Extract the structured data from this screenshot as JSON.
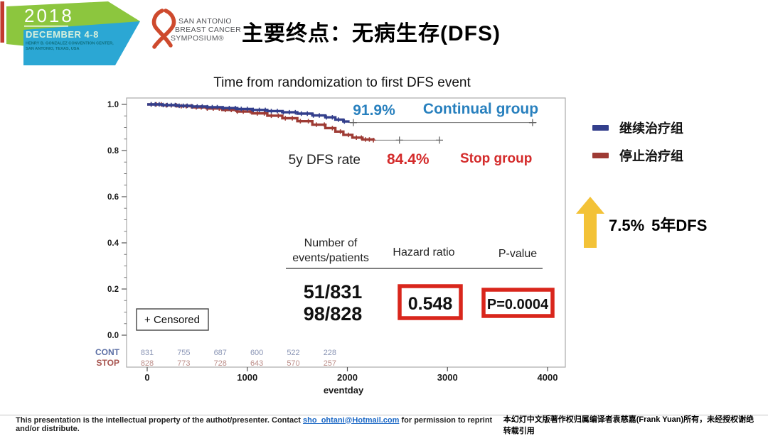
{
  "header": {
    "logo2018": {
      "year": "2018",
      "dates": "DECEMBER 4-8",
      "venue_line1": "HENRY B. GONZALEZ CONVENTION CENTER,",
      "venue_line2": "SAN ANTONIO, TEXAS, USA"
    },
    "sabcs": {
      "line1": "SAN ANTONIO",
      "line2": "BREAST CANCER",
      "line3": "SYMPOSIUM®"
    },
    "title": "主要终点：无病生存(DFS)"
  },
  "chart_data": {
    "type": "line",
    "title": "Time from randomization to first DFS event",
    "xlabel": "eventday",
    "xlim": [
      0,
      4000
    ],
    "ylim": [
      0.0,
      1.0
    ],
    "xticks": [
      "0",
      "1000",
      "2000",
      "3000",
      "4000"
    ],
    "yticks": [
      "1.0",
      "0.8",
      "0.6",
      "0.4",
      "0.2",
      "0.0"
    ],
    "rate_prefix": "5y DFS rate",
    "censored_legend": "+ Censored",
    "series": [
      {
        "name": "Continual group",
        "rate": "91.9%",
        "color": "#333F8C",
        "text_color": "#2880BE",
        "steps": [
          [
            0,
            1.0
          ],
          [
            150,
            0.997
          ],
          [
            300,
            0.994
          ],
          [
            450,
            0.991
          ],
          [
            600,
            0.988
          ],
          [
            750,
            0.984
          ],
          [
            900,
            0.98
          ],
          [
            1050,
            0.976
          ],
          [
            1200,
            0.971
          ],
          [
            1350,
            0.966
          ],
          [
            1500,
            0.96
          ],
          [
            1650,
            0.952
          ],
          [
            1780,
            0.944
          ],
          [
            1880,
            0.934
          ],
          [
            1960,
            0.926
          ],
          [
            2010,
            0.921
          ]
        ],
        "censor_days": [
          40,
          80,
          120,
          160,
          200,
          240,
          280,
          320,
          360,
          400,
          450,
          500,
          550,
          600,
          650,
          700,
          760,
          820,
          880,
          940,
          1000,
          1060,
          1120,
          1180,
          1240,
          1300,
          1360,
          1420,
          1480,
          1540,
          1600,
          1660,
          1720,
          1790,
          1850,
          1910,
          1970
        ],
        "tail_end": 3890,
        "tail_censors": [
          2060,
          3850
        ]
      },
      {
        "name": "Stop group",
        "rate": "84.4%",
        "color": "#9E3B34",
        "text_color": "#D42B2B",
        "steps": [
          [
            0,
            1.0
          ],
          [
            150,
            0.996
          ],
          [
            300,
            0.992
          ],
          [
            450,
            0.987
          ],
          [
            600,
            0.982
          ],
          [
            750,
            0.976
          ],
          [
            900,
            0.969
          ],
          [
            1050,
            0.961
          ],
          [
            1200,
            0.951
          ],
          [
            1350,
            0.94
          ],
          [
            1500,
            0.927
          ],
          [
            1650,
            0.912
          ],
          [
            1780,
            0.897
          ],
          [
            1880,
            0.882
          ],
          [
            1960,
            0.868
          ],
          [
            2050,
            0.856
          ],
          [
            2150,
            0.848
          ],
          [
            2260,
            0.845
          ]
        ],
        "censor_days": [
          40,
          90,
          140,
          190,
          240,
          290,
          340,
          390,
          440,
          490,
          540,
          600,
          660,
          720,
          780,
          840,
          900,
          960,
          1030,
          1100,
          1170,
          1240,
          1310,
          1380,
          1450,
          1530,
          1610,
          1690,
          1770,
          1850,
          1930,
          2010,
          2090,
          2140,
          2180,
          2220,
          2260
        ],
        "tail_end": 2920,
        "tail_censors": [
          2520,
          2920
        ]
      }
    ],
    "at_risk": {
      "days": [
        0,
        365,
        730,
        1095,
        1460,
        1825
      ],
      "rows": [
        {
          "label": "CONT",
          "values": [
            831,
            755,
            687,
            600,
            522,
            228
          ]
        },
        {
          "label": "STOP",
          "values": [
            828,
            773,
            728,
            643,
            570,
            257
          ]
        }
      ]
    },
    "stats": {
      "col1_header_line1": "Number of",
      "col1_header_line2": "events/patients",
      "col2_header": "Hazard ratio",
      "col3_header": "P-value",
      "events_continual": "51/831",
      "events_stop": "98/828",
      "hazard_ratio": "0.548",
      "p_value": "P=0.0004"
    }
  },
  "legend": {
    "continual": {
      "label": "继续治疗组",
      "color": "#333F8C"
    },
    "stop": {
      "label": "停止治疗组",
      "color": "#9E3B34"
    }
  },
  "highlight": {
    "delta": "7.5%",
    "label": "5年DFS",
    "arrow_color": "#F3C237"
  },
  "footer": {
    "left_pre": "This presentation is the intellectual property of the authot/presenter. Contact ",
    "email": "sho_ohtani@Hotmail.com",
    "left_post": " for permission to reprint and/or distribute.",
    "right": "本幻灯中文版著作权归属编译者袁慈嘉(Frank Yuan)所有，未经授权谢绝转载引用"
  }
}
